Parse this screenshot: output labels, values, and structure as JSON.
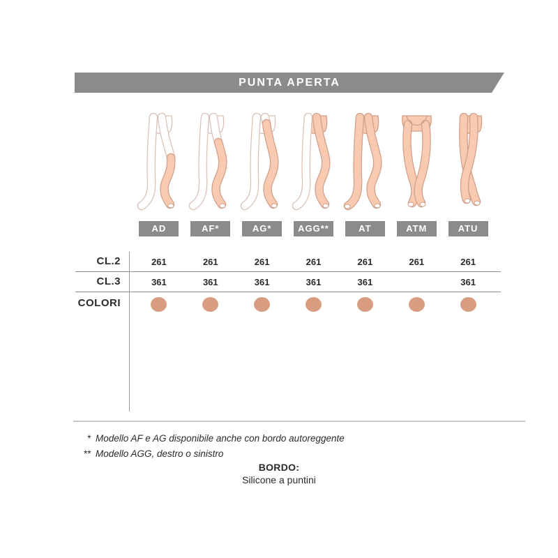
{
  "header": {
    "title": "PUNTA APERTA"
  },
  "models": [
    {
      "code": "AD",
      "label": "AD",
      "cl2": "261",
      "cl3": "361",
      "color_dot": true
    },
    {
      "code": "AF",
      "label": "AF*",
      "cl2": "261",
      "cl3": "361",
      "color_dot": true
    },
    {
      "code": "AG",
      "label": "AG*",
      "cl2": "261",
      "cl3": "361",
      "color_dot": true
    },
    {
      "code": "AGG",
      "label": "AGG**",
      "cl2": "261",
      "cl3": "361",
      "color_dot": true
    },
    {
      "code": "AT",
      "label": "AT",
      "cl2": "261",
      "cl3": "361",
      "color_dot": true
    },
    {
      "code": "ATM",
      "label": "ATM",
      "cl2": "261",
      "cl3": "",
      "color_dot": true
    },
    {
      "code": "ATU",
      "label": "ATU",
      "cl2": "261",
      "cl3": "361",
      "color_dot": true
    }
  ],
  "table": {
    "row_labels": {
      "cl2": "CL.2",
      "cl3": "CL.3",
      "colori": "COLORI"
    }
  },
  "footnotes": [
    {
      "marker": "*",
      "text": "Modello AF e AG disponibile anche con bordo autoreggente"
    },
    {
      "marker": "**",
      "text": "Modello AGG, destro o sinistro"
    }
  ],
  "bordo": {
    "title": "BORDO:",
    "value": "Silicone a puntini"
  },
  "colors": {
    "banner_gray": "#8a8b8d",
    "badge_gray": "#8a8b8d",
    "color_dot": "#d89d80",
    "stocking_fill": "#f9c9b0",
    "stocking_outline": "#cf9f8d",
    "text": "#2b2b2b"
  }
}
